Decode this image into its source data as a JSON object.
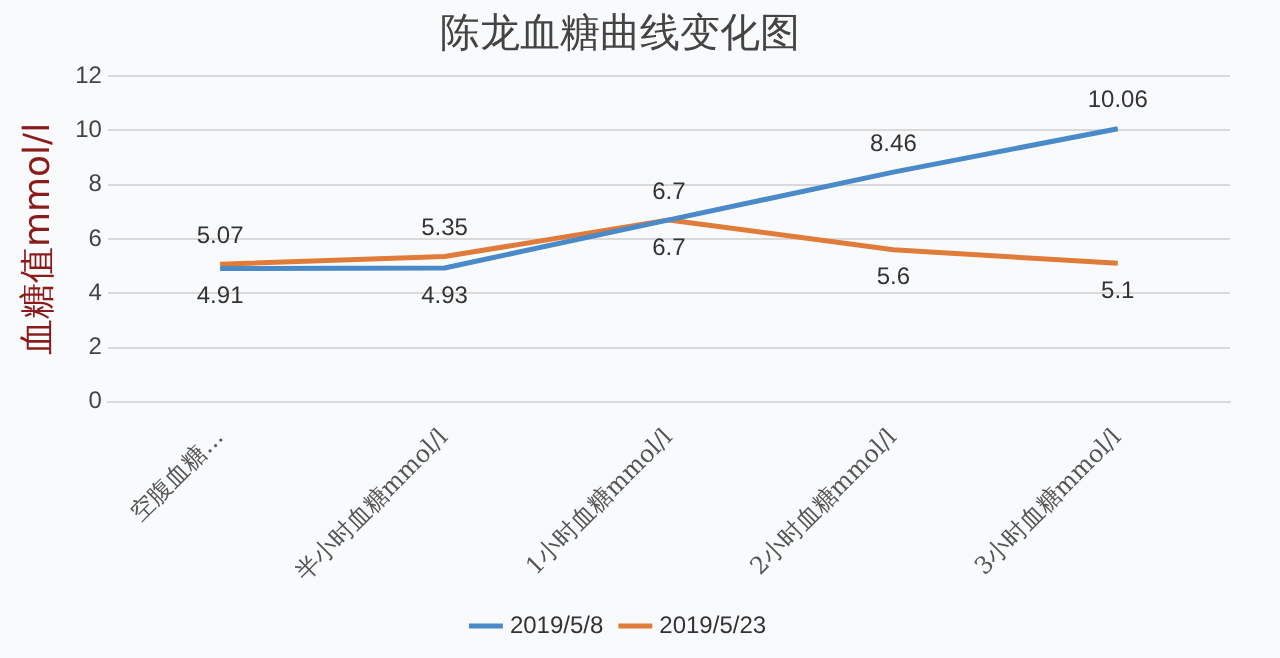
{
  "chart_data": {
    "type": "line",
    "title": "陈龙血糖曲线变化图",
    "ylabel": "血糖值mmol/l",
    "categories": [
      "空腹血糖...",
      "半小时血糖mmol/l",
      "1小时血糖mmol/l",
      "2小时血糖mmol/l",
      "3小时血糖mmol/l"
    ],
    "series": [
      {
        "name": "2019/5/8",
        "color": "#4a8ac8",
        "values": [
          4.91,
          4.93,
          6.7,
          8.46,
          10.06
        ]
      },
      {
        "name": "2019/5/23",
        "color": "#e07b39",
        "values": [
          5.07,
          5.35,
          6.7,
          5.6,
          5.1
        ]
      }
    ],
    "ylim": [
      0,
      12
    ],
    "yticks": [
      0,
      2,
      4,
      6,
      8,
      10,
      12
    ],
    "grid": "y",
    "legend": "bottom",
    "marker": "none",
    "line_style": "solid",
    "data_labels": true
  }
}
